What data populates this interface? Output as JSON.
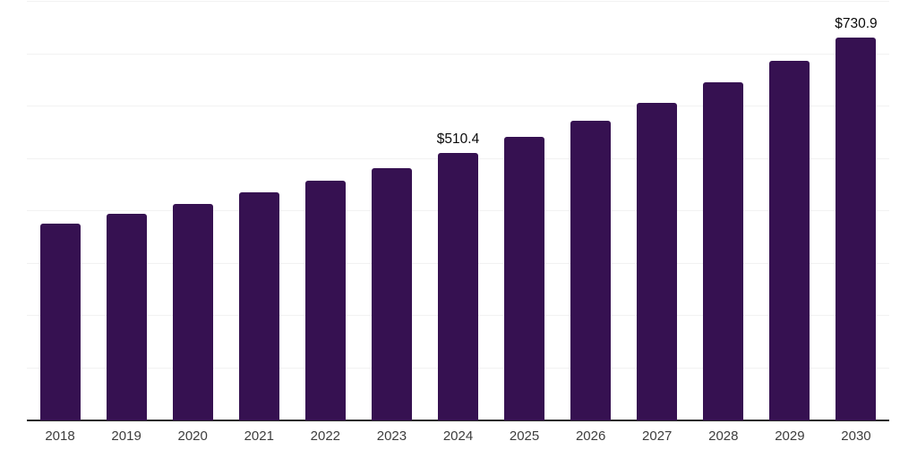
{
  "chart_data": {
    "type": "bar",
    "title": "",
    "xlabel": "",
    "ylabel": "",
    "categories": [
      "2018",
      "2019",
      "2020",
      "2021",
      "2022",
      "2023",
      "2024",
      "2025",
      "2026",
      "2027",
      "2028",
      "2029",
      "2030"
    ],
    "values": [
      375.4,
      394.5,
      413.5,
      436.0,
      457.5,
      481.5,
      510.4,
      541.5,
      572.5,
      607.0,
      645.5,
      686.5,
      730.9
    ],
    "value_labels": {
      "2024": "$510.4",
      "2030": "$730.9"
    },
    "ylim": [
      0,
      800
    ],
    "gridline_step": 100,
    "grid_on": true,
    "legend_position": "none",
    "colors": {
      "bar": "#361151",
      "gridline": "#f2f2f2",
      "axis_line": "#2b2b2b",
      "tick_label": "#3d3d3d",
      "value_label": "#0a0a0a",
      "background": "#ffffff"
    }
  }
}
